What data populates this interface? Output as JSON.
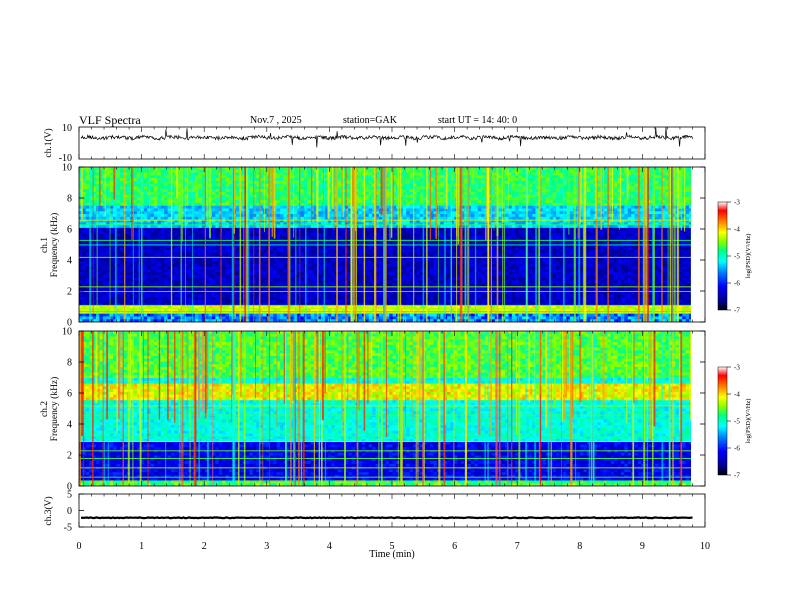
{
  "header": {
    "title": "VLF Spectra",
    "date": "Nov.7  , 2025",
    "station": "station=GAK",
    "start": "start  UT  =    14: 40: 0"
  },
  "chart_data": [
    {
      "type": "line",
      "name": "ch1-waveform",
      "ylabel": "ch.1(V)",
      "ylim": [
        -10,
        10
      ],
      "yticks": [
        "10",
        "-10"
      ],
      "x_range_min": [
        0,
        9.8
      ],
      "baseline": 3.4
    },
    {
      "type": "heatmap",
      "name": "ch1-spectrogram",
      "ylabel": "ch.1\nFrequency  (kHz)",
      "ylabel_line1": "ch.1",
      "ylabel_line2": "Frequency  (kHz)",
      "ylim": [
        0,
        10
      ],
      "yticks": [
        "0",
        "2",
        "4",
        "6",
        "8",
        "10"
      ],
      "x_range_min": [
        0,
        9.8
      ],
      "colorbar": {
        "label": "log(PSD)(V²/Hz)",
        "range": [
          -7,
          -3
        ],
        "ticks": [
          "-3",
          "-4",
          "-5",
          "-6",
          "-7"
        ]
      }
    },
    {
      "type": "heatmap",
      "name": "ch2-spectrogram",
      "ylabel_line1": "ch.2",
      "ylabel_line2": "Frequency  (kHz)",
      "ylim": [
        0,
        10
      ],
      "yticks": [
        "0",
        "2",
        "4",
        "6",
        "8",
        "10"
      ],
      "x_range_min": [
        0,
        9.8
      ],
      "colorbar": {
        "label": "log(PSD)(V²/Hz)",
        "range": [
          -7,
          -3
        ],
        "ticks": [
          "-3",
          "-4",
          "-5",
          "-6",
          "-7"
        ]
      }
    },
    {
      "type": "line",
      "name": "ch3-waveform",
      "ylabel": "ch.3(V)",
      "ylim": [
        -5,
        5
      ],
      "yticks": [
        "5",
        "0",
        "-5"
      ],
      "x_range_min": [
        0,
        9.8
      ],
      "baseline": -2.2
    }
  ],
  "xaxis": {
    "label": "Time  (min)",
    "range": [
      0,
      10
    ],
    "ticks": [
      "0",
      "1",
      "2",
      "3",
      "4",
      "5",
      "6",
      "7",
      "8",
      "9",
      "10"
    ]
  },
  "colors": {
    "colormap": [
      "#000000",
      "#00008b",
      "#0000ff",
      "#0080ff",
      "#00ffff",
      "#00ff80",
      "#80ff00",
      "#ffff00",
      "#ff8000",
      "#ff0000",
      "#ffffff"
    ]
  }
}
